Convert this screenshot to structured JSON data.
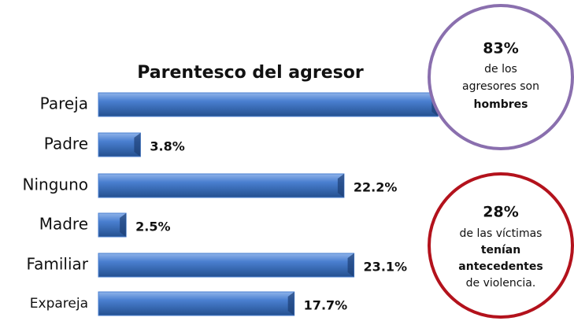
{
  "chart_data": {
    "type": "bar",
    "orientation": "horizontal",
    "title": "Parentesco del agresor",
    "categories": [
      "Pareja",
      "Padre",
      "Ninguno",
      "Madre",
      "Familiar",
      "Expareja"
    ],
    "values": [
      30.7,
      3.8,
      22.2,
      2.5,
      23.1,
      17.7
    ],
    "value_labels": [
      null,
      "3.8%",
      "22.2%",
      "2.5%",
      "23.1%",
      "17.7%"
    ],
    "color": "#4a7fd0",
    "annotations": [
      {
        "color": "#8a6fae",
        "lines": [
          {
            "text": "83%",
            "bold": true
          },
          {
            "text": "de los",
            "bold": false
          },
          {
            "text": "agresores son",
            "bold": false
          },
          {
            "text": "hombres",
            "bold": true
          }
        ]
      },
      {
        "color": "#b3121c",
        "lines": [
          {
            "text": "28%",
            "bold": true
          },
          {
            "text": "de las víctimas",
            "bold": false
          },
          {
            "text": "tenían",
            "bold": true
          },
          {
            "text": "antecedentes",
            "bold": true
          },
          {
            "text": "de violencia.",
            "bold": false
          }
        ]
      }
    ]
  }
}
